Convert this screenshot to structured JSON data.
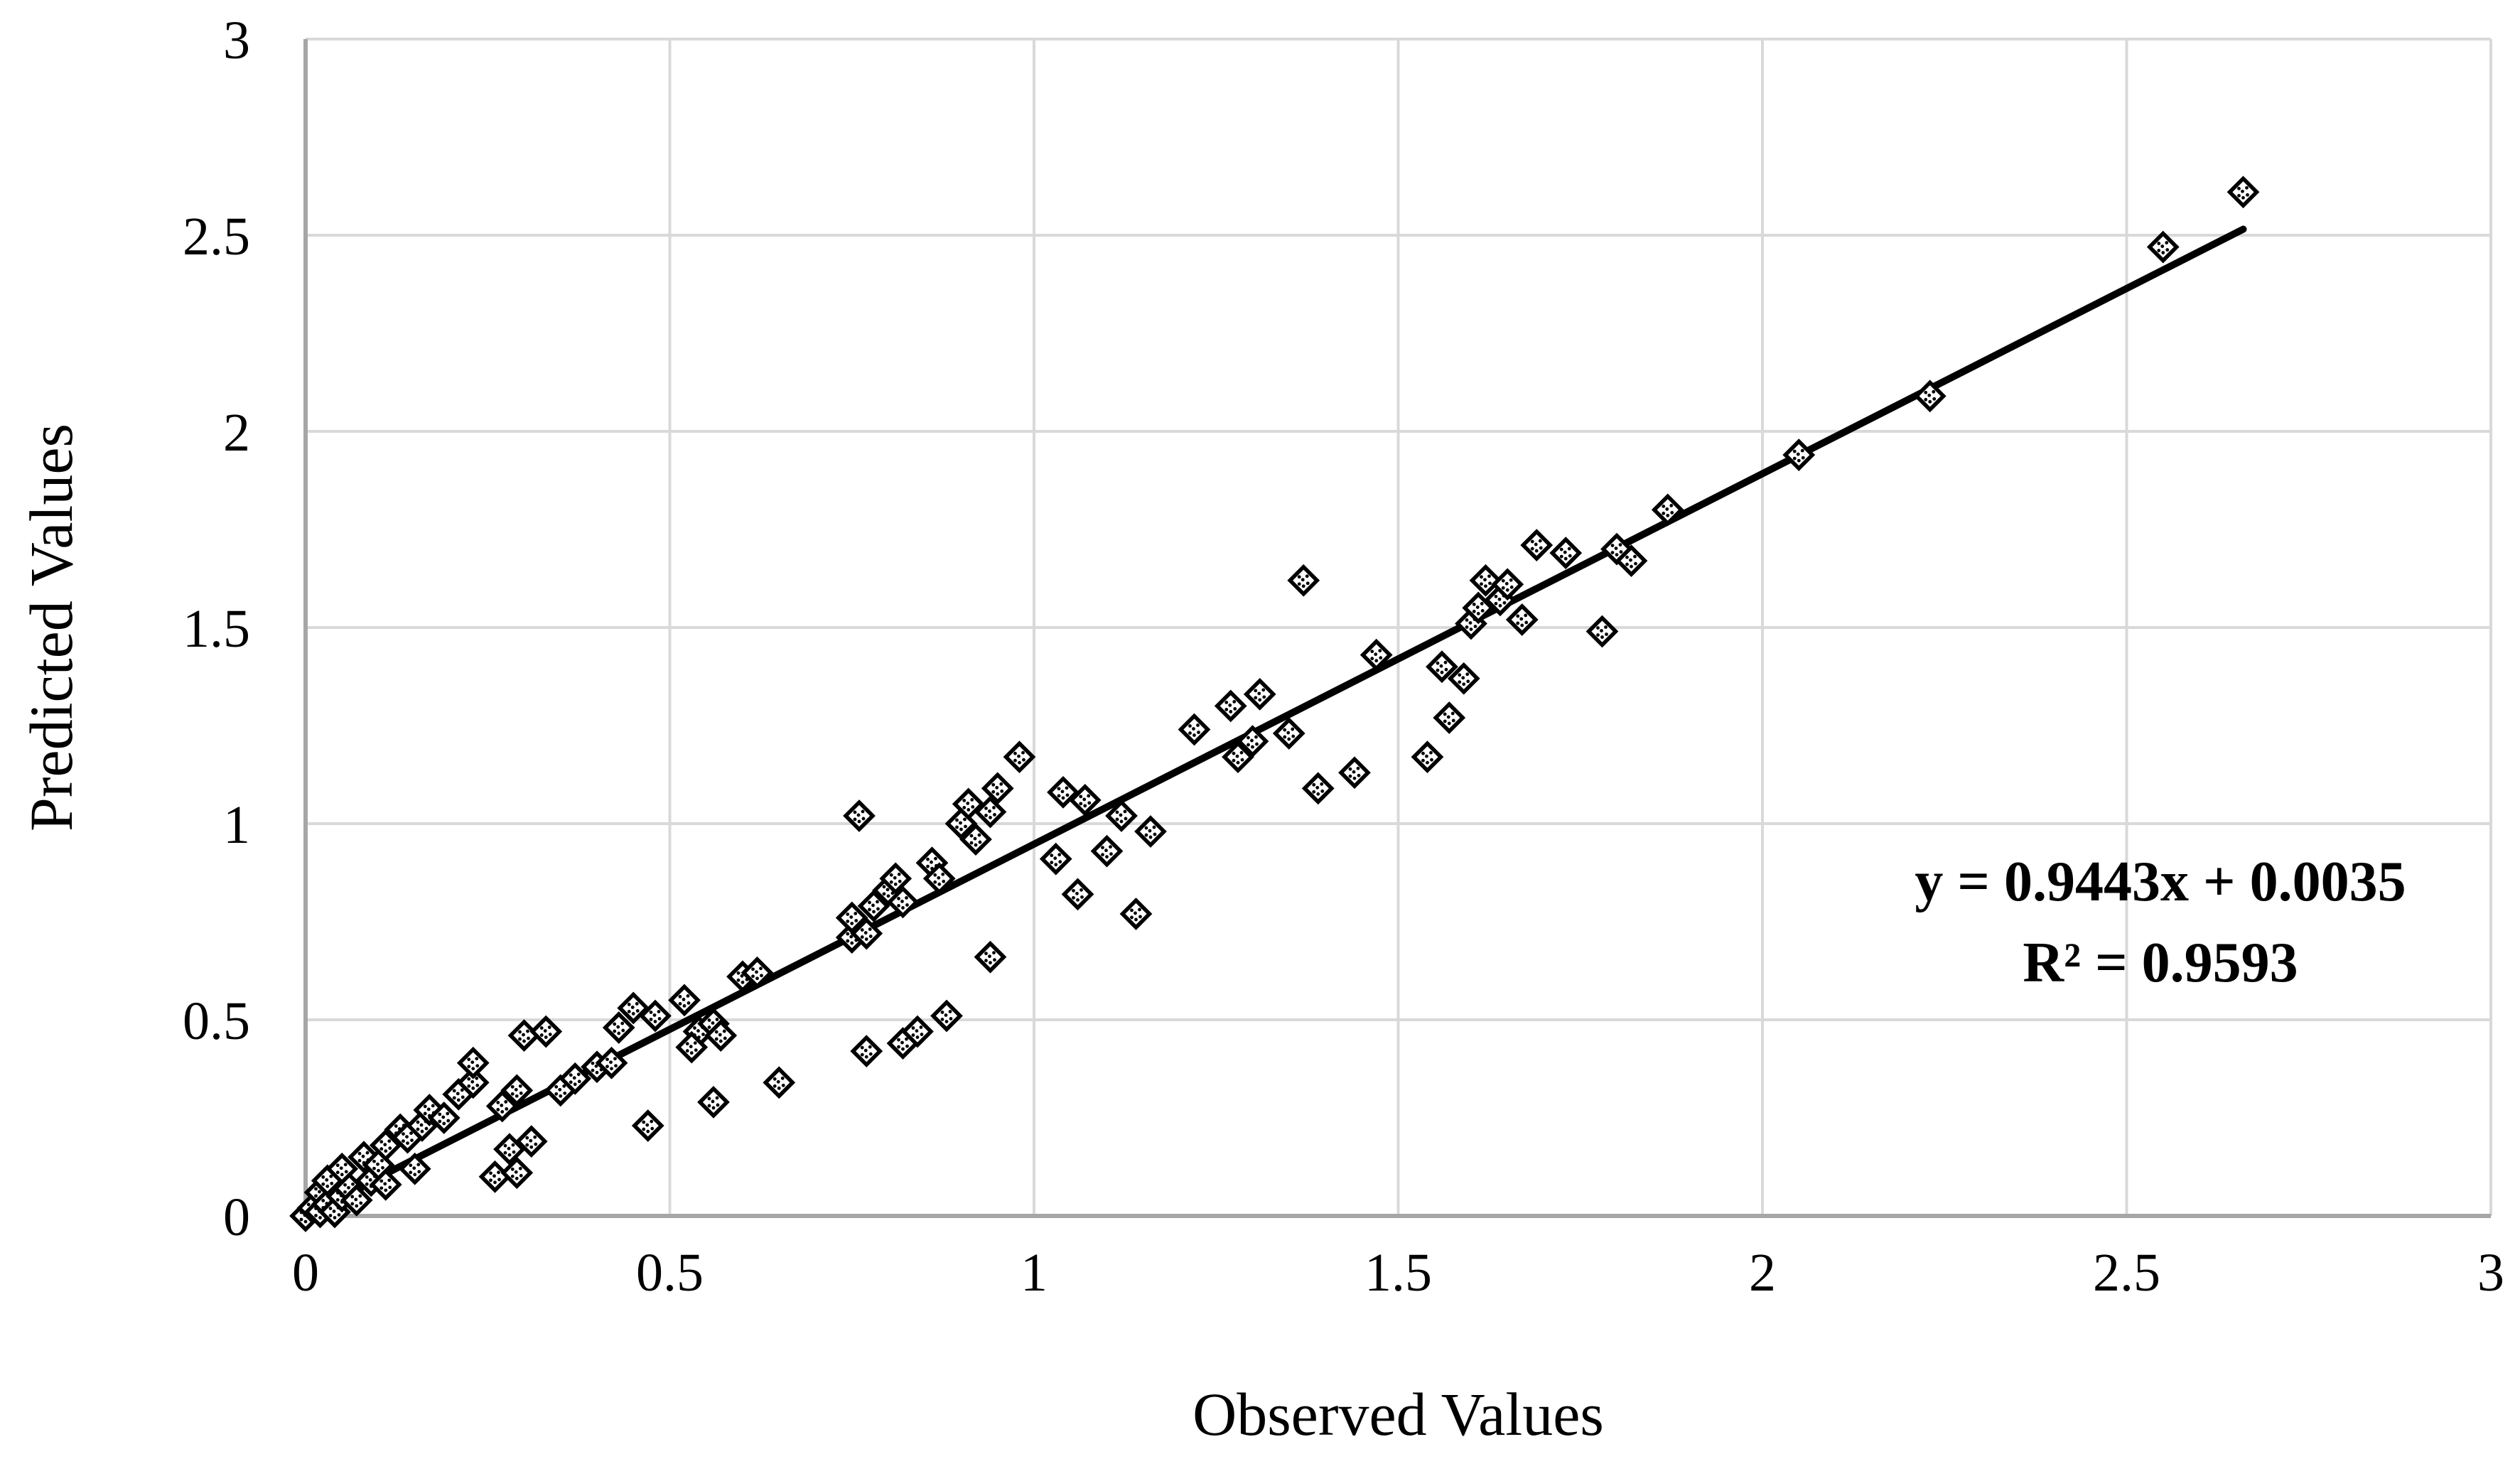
{
  "chart_data": {
    "type": "scatter",
    "title": "",
    "xlabel": "Observed Values",
    "ylabel": "Predicted Values",
    "xlim": [
      0,
      3
    ],
    "ylim": [
      0,
      3
    ],
    "x_ticks": [
      0,
      0.5,
      1,
      1.5,
      2,
      2.5,
      3
    ],
    "y_ticks": [
      0,
      0.5,
      1,
      1.5,
      2,
      2.5,
      3
    ],
    "grid": true,
    "legend": "none",
    "annotation": {
      "equation": "y = 0.9443x + 0.0035",
      "r_squared": "R² = 0.9593"
    },
    "trendline": {
      "slope": 0.9443,
      "intercept": 0.0035,
      "x_start": 0,
      "x_end": 2.66,
      "color": "#000000",
      "width": 10
    },
    "marker": {
      "shape": "dotted-diamond",
      "fill": "#ffffff",
      "stroke": "#000000",
      "stroke_width": 5.5,
      "half_size": 19
    },
    "colors": {
      "background": "#ffffff",
      "gridline": "#d9d9d9",
      "axis_line": "#a6a6a6",
      "text": "#000000"
    },
    "points": [
      [
        0.0,
        0.0
      ],
      [
        0.01,
        0.02
      ],
      [
        0.02,
        0.01
      ],
      [
        0.02,
        0.06
      ],
      [
        0.03,
        0.03
      ],
      [
        0.03,
        0.09
      ],
      [
        0.04,
        0.01
      ],
      [
        0.05,
        0.05
      ],
      [
        0.05,
        0.12
      ],
      [
        0.06,
        0.07
      ],
      [
        0.07,
        0.04
      ],
      [
        0.08,
        0.15
      ],
      [
        0.09,
        0.09
      ],
      [
        0.1,
        0.13
      ],
      [
        0.11,
        0.08
      ],
      [
        0.11,
        0.18
      ],
      [
        0.13,
        0.22
      ],
      [
        0.14,
        0.2
      ],
      [
        0.15,
        0.12
      ],
      [
        0.16,
        0.23
      ],
      [
        0.17,
        0.27
      ],
      [
        0.19,
        0.25
      ],
      [
        0.21,
        0.31
      ],
      [
        0.23,
        0.34
      ],
      [
        0.23,
        0.39
      ],
      [
        0.26,
        0.1
      ],
      [
        0.29,
        0.11
      ],
      [
        0.28,
        0.17
      ],
      [
        0.31,
        0.19
      ],
      [
        0.3,
        0.46
      ],
      [
        0.33,
        0.47
      ],
      [
        0.27,
        0.28
      ],
      [
        0.29,
        0.32
      ],
      [
        0.35,
        0.32
      ],
      [
        0.37,
        0.35
      ],
      [
        0.4,
        0.38
      ],
      [
        0.42,
        0.39
      ],
      [
        0.43,
        0.48
      ],
      [
        0.45,
        0.53
      ],
      [
        0.48,
        0.51
      ],
      [
        0.52,
        0.55
      ],
      [
        0.54,
        0.47
      ],
      [
        0.56,
        0.49
      ],
      [
        0.53,
        0.43
      ],
      [
        0.57,
        0.46
      ],
      [
        0.47,
        0.23
      ],
      [
        0.56,
        0.29
      ],
      [
        0.6,
        0.61
      ],
      [
        0.62,
        0.62
      ],
      [
        0.65,
        0.34
      ],
      [
        0.75,
        0.71
      ],
      [
        0.75,
        0.76
      ],
      [
        0.77,
        0.72
      ],
      [
        0.78,
        0.79
      ],
      [
        0.8,
        0.83
      ],
      [
        0.81,
        0.86
      ],
      [
        0.82,
        0.8
      ],
      [
        0.86,
        0.9
      ],
      [
        0.87,
        0.86
      ],
      [
        0.77,
        0.42
      ],
      [
        0.82,
        0.44
      ],
      [
        0.84,
        0.47
      ],
      [
        0.88,
        0.51
      ],
      [
        0.76,
        1.02
      ],
      [
        0.9,
        1.0
      ],
      [
        0.91,
        1.05
      ],
      [
        0.94,
        1.03
      ],
      [
        0.95,
        1.09
      ],
      [
        0.98,
        1.17
      ],
      [
        0.92,
        0.96
      ],
      [
        1.04,
        1.08
      ],
      [
        1.07,
        1.06
      ],
      [
        1.12,
        1.02
      ],
      [
        1.16,
        0.98
      ],
      [
        1.03,
        0.91
      ],
      [
        1.1,
        0.93
      ],
      [
        1.06,
        0.82
      ],
      [
        1.14,
        0.77
      ],
      [
        0.94,
        0.66
      ],
      [
        1.22,
        1.24
      ],
      [
        1.27,
        1.3
      ],
      [
        1.31,
        1.33
      ],
      [
        1.28,
        1.17
      ],
      [
        1.3,
        1.21
      ],
      [
        1.35,
        1.23
      ],
      [
        1.37,
        1.62
      ],
      [
        1.39,
        1.09
      ],
      [
        1.44,
        1.13
      ],
      [
        1.47,
        1.43
      ],
      [
        1.54,
        1.17
      ],
      [
        1.57,
        1.27
      ],
      [
        1.56,
        1.4
      ],
      [
        1.59,
        1.37
      ],
      [
        1.6,
        1.51
      ],
      [
        1.61,
        1.55
      ],
      [
        1.62,
        1.62
      ],
      [
        1.64,
        1.57
      ],
      [
        1.65,
        1.61
      ],
      [
        1.67,
        1.52
      ],
      [
        1.69,
        1.71
      ],
      [
        1.73,
        1.69
      ],
      [
        1.78,
        1.49
      ],
      [
        1.8,
        1.7
      ],
      [
        1.82,
        1.67
      ],
      [
        1.87,
        1.8
      ],
      [
        2.05,
        1.94
      ],
      [
        2.23,
        2.09
      ],
      [
        2.55,
        2.47
      ],
      [
        2.66,
        2.61
      ]
    ]
  }
}
